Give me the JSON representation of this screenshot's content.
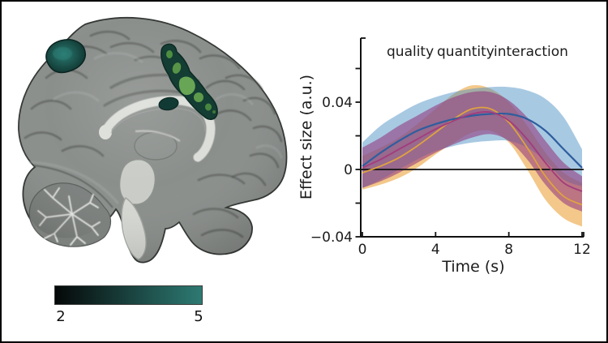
{
  "figure": {
    "background": "#ffffff",
    "border_color": "#000000",
    "description": "fMRI results figure: sagittal brain slice with activation clusters (left) and effect-size time courses (right)"
  },
  "brain_panel": {
    "description": "Sagittal brain MRI with dark-teal/green activation clusters in superior parietal and medial frontal regions",
    "clusters": [
      {
        "name": "superior-parietal-cluster",
        "color": "#1d5f58"
      },
      {
        "name": "medial-frontal-elongated-cluster",
        "outer_color": "#143d33",
        "inner_color": "#68a655"
      },
      {
        "name": "cingulate-small-cluster",
        "color": "#123a34"
      }
    ],
    "colorbar": {
      "min_label": "2",
      "max_label": "5",
      "color_start": "#050808",
      "color_end": "#2e7a73"
    }
  },
  "chart_data": {
    "type": "line",
    "title": "",
    "xlabel": "Time (s)",
    "ylabel": "Effect size (a.u.)",
    "xlim": [
      0,
      12
    ],
    "ylim": [
      -0.04,
      0.078
    ],
    "grid": false,
    "zero_line": true,
    "legend_position": "top",
    "xticks": [
      0,
      4,
      8,
      12
    ],
    "yticks": [
      {
        "v": 0.06,
        "label": ""
      },
      {
        "v": 0.04,
        "label": "0.04"
      },
      {
        "v": 0.02,
        "label": ""
      },
      {
        "v": 0,
        "label": "0"
      },
      {
        "v": -0.02,
        "label": ""
      },
      {
        "v": -0.04,
        "label": "−0.04"
      }
    ],
    "x": [
      0,
      1,
      2,
      3,
      4,
      5,
      6,
      7,
      8,
      9,
      10,
      11,
      12
    ],
    "series": [
      {
        "name": "quality",
        "label_color": "#e2962e",
        "line_color": "#dfa23f",
        "band_color": "#eba43c",
        "band_opacity": 0.6,
        "mean": [
          -0.002,
          0.002,
          0.007,
          0.014,
          0.022,
          0.03,
          0.036,
          0.036,
          0.028,
          0.013,
          -0.004,
          -0.016,
          -0.021
        ],
        "band_hi": [
          0.008,
          0.013,
          0.019,
          0.027,
          0.036,
          0.045,
          0.05,
          0.048,
          0.04,
          0.026,
          0.01,
          -0.002,
          -0.008
        ],
        "band_lo": [
          -0.012,
          -0.009,
          -0.005,
          0.001,
          0.009,
          0.016,
          0.022,
          0.023,
          0.016,
          0.0,
          -0.018,
          -0.029,
          -0.034
        ]
      },
      {
        "name": "quantity",
        "label_color": "#4a8fc2",
        "line_color": "#2e5e9e",
        "band_color": "#4a8fc2",
        "band_opacity": 0.48,
        "mean": [
          0.002,
          0.01,
          0.017,
          0.023,
          0.027,
          0.03,
          0.032,
          0.033,
          0.033,
          0.03,
          0.023,
          0.012,
          0.001
        ],
        "band_hi": [
          0.016,
          0.026,
          0.033,
          0.039,
          0.043,
          0.046,
          0.048,
          0.049,
          0.049,
          0.047,
          0.042,
          0.031,
          0.012
        ],
        "band_lo": [
          -0.011,
          -0.006,
          0.0,
          0.006,
          0.011,
          0.014,
          0.016,
          0.017,
          0.017,
          0.013,
          0.005,
          -0.006,
          -0.01
        ]
      },
      {
        "name": "interaction",
        "label_color": "#9c2f86",
        "line_color": "#a33c7c",
        "band_color": "#92397e",
        "band_opacity": 0.58,
        "mean": [
          0.001,
          0.006,
          0.012,
          0.018,
          0.024,
          0.029,
          0.033,
          0.034,
          0.029,
          0.018,
          0.004,
          -0.008,
          -0.013
        ],
        "band_hi": [
          0.013,
          0.019,
          0.026,
          0.032,
          0.038,
          0.043,
          0.046,
          0.046,
          0.041,
          0.031,
          0.017,
          0.004,
          -0.004
        ],
        "band_lo": [
          -0.011,
          -0.007,
          -0.002,
          0.004,
          0.01,
          0.015,
          0.019,
          0.021,
          0.017,
          0.006,
          -0.009,
          -0.02,
          -0.025
        ]
      }
    ]
  }
}
